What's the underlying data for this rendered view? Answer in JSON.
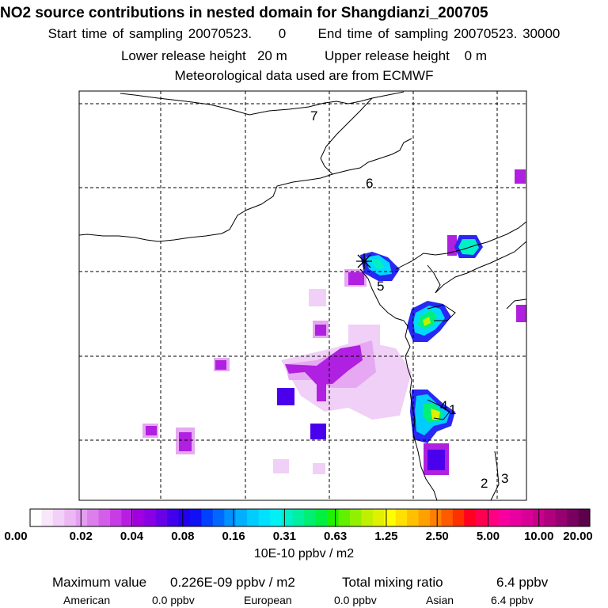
{
  "header": {
    "title": "NO2 source contributions in nested domain for Shangdianzi_200705",
    "sampling": "Start time of sampling 20070523.     0      End time of sampling 20070523. 30000",
    "release": "Lower release height   20 m          Upper release height    0 m",
    "met": "Meteorological data used are from ECMWF"
  },
  "map": {
    "region_labels": [
      "7",
      "6",
      "5",
      "4",
      "1",
      "2",
      "3"
    ],
    "station_marker": "star-icon"
  },
  "colorbar": {
    "labels": [
      "0.00",
      "0.02",
      "0.04",
      "0.08",
      "0.16",
      "0.31",
      "0.63",
      "1.25",
      "2.50",
      "5.00",
      "10.00",
      "20.00"
    ],
    "colors": [
      "#ffffff",
      "#f8e6fb",
      "#f2d0f7",
      "#ecb8f4",
      "#e49ef0",
      "#dc7eec",
      "#d45ee9",
      "#c83ce6",
      "#b81ee2",
      "#a000e0",
      "#8a00e4",
      "#6a00e8",
      "#4000ec",
      "#2200f0",
      "#1010f5",
      "#0040ff",
      "#0068ff",
      "#0090ff",
      "#00b0ff",
      "#00ccff",
      "#00e0ff",
      "#00f0f4",
      "#00f0c8",
      "#00f0a0",
      "#00ef70",
      "#00f040",
      "#20f000",
      "#60f000",
      "#90f000",
      "#c0f000",
      "#e0f000",
      "#ffff00",
      "#ffe000",
      "#ffc000",
      "#ffa000",
      "#ff8000",
      "#ff5a00",
      "#ff3000",
      "#ff0020",
      "#ff0050",
      "#ff0080",
      "#f800a0",
      "#e800a0",
      "#d80096",
      "#c8008c",
      "#b0007e",
      "#960070",
      "#7a0060",
      "#5c004c"
    ],
    "units": "10E-10 ppbv / m2"
  },
  "stats": {
    "max_label": "Maximum value",
    "max_value": "0.226E-09 ppbv / m2",
    "total_label": "Total mixing ratio",
    "total_value": "6.4 ppbv"
  },
  "regions": [
    {
      "name": "American",
      "value": "0.0 ppbv"
    },
    {
      "name": "European",
      "value": "0.0 ppbv"
    },
    {
      "name": "Asian",
      "value": "6.4 ppbv"
    }
  ]
}
